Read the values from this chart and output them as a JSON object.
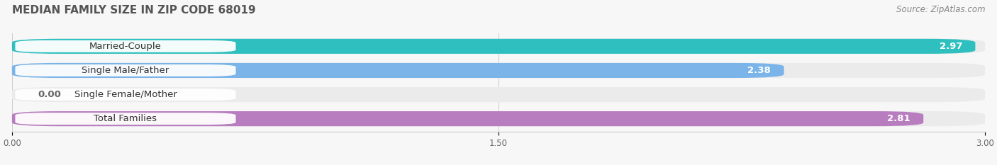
{
  "title": "MEDIAN FAMILY SIZE IN ZIP CODE 68019",
  "source": "Source: ZipAtlas.com",
  "categories": [
    "Married-Couple",
    "Single Male/Father",
    "Single Female/Mother",
    "Total Families"
  ],
  "values": [
    2.97,
    2.38,
    0.0,
    2.81
  ],
  "bar_colors": [
    "#30bfbf",
    "#7ab4e8",
    "#f4a0b4",
    "#b87dbf"
  ],
  "bar_bg_color": "#ebebeb",
  "xlim": [
    0.0,
    3.0
  ],
  "xticks": [
    0.0,
    1.5,
    3.0
  ],
  "xtick_labels": [
    "0.00",
    "1.50",
    "3.00"
  ],
  "bar_height": 0.62,
  "bar_gap": 0.38,
  "figsize": [
    14.06,
    2.33
  ],
  "dpi": 100,
  "title_fontsize": 11,
  "source_fontsize": 8.5,
  "label_fontsize": 9.5,
  "value_fontsize": 9.5,
  "fig_bg": "#f7f7f7"
}
